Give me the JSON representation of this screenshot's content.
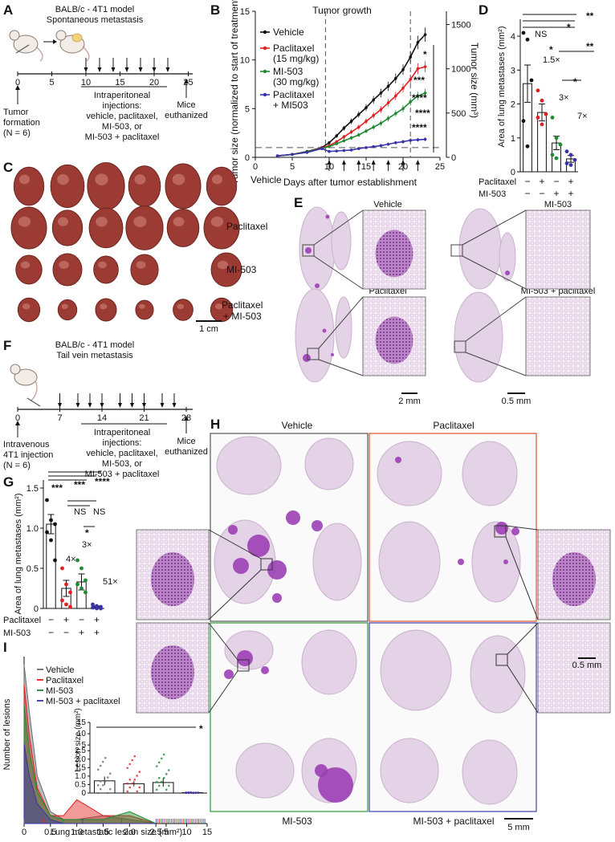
{
  "colors": {
    "vehicle": "#111111",
    "paclitaxel": "#e02020",
    "mi503": "#1f8a32",
    "combo": "#3a33a8",
    "tissue": "#e4d2e6",
    "lesion": "#9b3fb5",
    "tumor": "#9c3b33",
    "frame_h_pac": "#e05030",
    "frame_h_mi": "#2c9a3a",
    "frame_h_combo": "#4040b0"
  },
  "panels": {
    "A": {
      "label": "A",
      "title1": "BALB/c - 4T1 model",
      "title2": "Spontaneous metastasis",
      "ticks": [
        "0",
        "5",
        "10",
        "15",
        "20",
        "25"
      ],
      "formation1": "Tumor",
      "formation2": "formation",
      "formation3": "(N = 6)",
      "inj1": "Intraperitoneal",
      "inj2": "injections:",
      "inj3": "vehicle, paclitaxel,",
      "inj4": "MI-503, or",
      "inj5": "MI-503 + paclitaxel",
      "euth1": "Mice",
      "euth2": "euthanized"
    },
    "B": {
      "label": "B",
      "phase": "Tumor growth",
      "legend": [
        "Vehicle",
        "Paclitaxel",
        "(15 mg/kg)",
        "MI-503",
        "(30 mg/kg)",
        "Paclitaxel",
        "+ MI503"
      ],
      "stars": [
        "*",
        "***",
        "****",
        "****",
        "****"
      ]
    },
    "C": {
      "label": "C",
      "rows": [
        "Vehicle",
        "Paclitaxel",
        "MI-503",
        "Paclitaxel",
        "+ MI-503"
      ],
      "scale": "1 cm"
    },
    "D": {
      "label": "D",
      "axis_paclitaxel": "Paclitaxel",
      "axis_mi503": "MI-503",
      "signs": [
        "−",
        "+",
        "−",
        "+",
        "−",
        "−",
        "+",
        "+"
      ],
      "ns": "NS",
      "folds": [
        "1.5×",
        "3×",
        "7×"
      ],
      "stars": [
        "*",
        "**",
        "*",
        "**",
        "*"
      ]
    },
    "E": {
      "label": "E",
      "titles": [
        "Vehicle",
        "MI-503",
        "Paclitaxel",
        "MI-503 + paclitaxel"
      ],
      "scale_big": "2 mm",
      "scale_small": "0.5 mm"
    },
    "F": {
      "label": "F",
      "title1": "BALB/c - 4T1 model",
      "title2": "Tail vein metastasis",
      "ticks": [
        "0",
        "7",
        "14",
        "21",
        "28"
      ],
      "iv1": "Intravenous",
      "iv2": "4T1 injection",
      "iv3": "(N = 6)",
      "inj1": "Intraperitoneal",
      "inj2": "injections:",
      "inj3": "vehicle, paclitaxel,",
      "inj4": "MI-503, or",
      "inj5": "MI-503 + paclitaxel",
      "euth1": "Mice",
      "euth2": "euthanized"
    },
    "G": {
      "label": "G",
      "axis_paclitaxel": "Paclitaxel",
      "axis_mi503": "MI-503",
      "signs": [
        "−",
        "+",
        "−",
        "+",
        "−",
        "−",
        "+",
        "+"
      ],
      "stars": [
        "***",
        "***",
        "****",
        "*"
      ],
      "ns": [
        "NS",
        "NS"
      ],
      "folds": [
        "4×",
        "3×",
        "51×"
      ]
    },
    "H": {
      "label": "H",
      "titles": [
        "Vehicle",
        "Paclitaxel",
        "MI-503",
        "MI-503 + paclitaxel"
      ],
      "scale_small": "0.5 mm",
      "scale_big": "5 mm"
    },
    "I": {
      "label": "I",
      "legend": [
        "Vehicle",
        "Paclitaxel",
        "MI-503",
        "MI-503 + paclitaxel"
      ],
      "star": "*"
    }
  },
  "chart_data": [
    {
      "type": "line",
      "panel": "B",
      "xlabel": "Days after tumor establishment",
      "ylabel": "Tumor size (normalized to start of treatment)",
      "y2label": "Tumor size (mm³)",
      "xlim": [
        0,
        25
      ],
      "ylim": [
        0,
        15
      ],
      "y2lim": [
        0,
        1650
      ],
      "xticks": [
        "0",
        "5",
        "10",
        "15",
        "20",
        "25"
      ],
      "yticks": [
        "0",
        "5",
        "10",
        "15"
      ],
      "y2ticks": [
        "0",
        "500",
        "1000",
        "1500"
      ],
      "x": [
        3,
        5,
        7,
        9,
        10,
        11,
        12,
        13,
        14,
        15,
        16,
        17,
        18,
        19,
        20,
        21,
        22,
        23
      ],
      "series": [
        {
          "name": "Vehicle",
          "values": [
            0.15,
            0.3,
            0.6,
            1.0,
            1.5,
            2.2,
            3.0,
            3.7,
            4.4,
            5.1,
            5.9,
            6.6,
            7.3,
            8.1,
            9.0,
            10.3,
            11.8,
            12.6
          ]
        },
        {
          "name": "Paclitaxel",
          "values": [
            0.15,
            0.3,
            0.55,
            0.95,
            1.2,
            1.6,
            2.1,
            2.6,
            3.1,
            3.7,
            4.3,
            4.9,
            5.6,
            6.3,
            7.1,
            8.0,
            9.1,
            9.3
          ]
        },
        {
          "name": "MI-503",
          "values": [
            0.15,
            0.3,
            0.55,
            0.9,
            1.1,
            1.4,
            1.7,
            2.0,
            2.3,
            2.7,
            3.1,
            3.5,
            4.0,
            4.5,
            5.0,
            5.7,
            6.3,
            6.6
          ]
        },
        {
          "name": "Paclitaxel + MI503",
          "values": [
            0.15,
            0.3,
            0.5,
            0.9,
            0.6,
            0.65,
            0.7,
            0.75,
            0.9,
            1.0,
            1.1,
            1.2,
            1.35,
            1.5,
            1.6,
            1.75,
            1.8,
            1.85
          ]
        }
      ]
    },
    {
      "type": "bar",
      "panel": "D",
      "ylabel": "Area of lung metastases (mm²)",
      "ylim": [
        0,
        4.5
      ],
      "yticks": [
        "0",
        "1",
        "2",
        "3",
        "4"
      ],
      "categories": [
        "Vehicle",
        "Paclitaxel",
        "MI-503",
        "MI-503 + paclitaxel"
      ],
      "values": [
        2.6,
        1.75,
        0.85,
        0.38
      ],
      "errors": [
        0.55,
        0.25,
        0.2,
        0.1
      ],
      "points": [
        [
          4.1,
          3.9,
          2.7,
          1.5,
          0.75
        ],
        [
          2.4,
          2.1,
          1.7,
          1.6,
          1.4
        ],
        [
          1.6,
          1.0,
          0.8,
          0.5,
          0.4
        ],
        [
          0.6,
          0.5,
          0.35,
          0.25,
          0.2
        ]
      ]
    },
    {
      "type": "bar",
      "panel": "G",
      "ylabel": "Area of lung metastases (mm²)",
      "ylim": [
        0,
        1.6
      ],
      "yticks": [
        "0",
        "0.5",
        "1.0",
        "1.5"
      ],
      "categories": [
        "Vehicle",
        "Paclitaxel",
        "MI-503",
        "MI-503 + paclitaxel"
      ],
      "values": [
        1.05,
        0.25,
        0.33,
        0.02
      ],
      "errors": [
        0.12,
        0.1,
        0.1,
        0.01
      ],
      "points": [
        [
          1.35,
          1.1,
          1.05,
          0.95,
          0.85,
          0.6
        ],
        [
          0.5,
          0.3,
          0.2,
          0.1,
          0.05,
          0.02
        ],
        [
          0.6,
          0.5,
          0.35,
          0.3,
          0.25,
          0.2
        ],
        [
          0.05,
          0.03,
          0.02,
          0.01,
          0.0,
          0.0
        ]
      ]
    },
    {
      "type": "area",
      "panel": "I",
      "xlabel": "Lung metastatic lesion size (mm²)",
      "ylabel": "Number of lesions",
      "xlim": [
        0,
        15
      ],
      "xticks": [
        "0",
        "0.5",
        "1.0",
        "1.5",
        "2.0",
        "2.5",
        "5",
        "10",
        "15"
      ],
      "series": [
        {
          "name": "Vehicle",
          "x": [
            0,
            0.1,
            0.25,
            0.5,
            0.75,
            1.0,
            1.5,
            2.0,
            2.5
          ],
          "values": [
            40,
            28,
            12,
            3,
            1,
            1,
            2,
            1,
            0
          ]
        },
        {
          "name": "Paclitaxel",
          "x": [
            0,
            0.1,
            0.25,
            0.5,
            0.75,
            1.0,
            1.5,
            2.0,
            2.5
          ],
          "values": [
            35,
            22,
            9,
            2,
            2,
            6,
            2,
            2,
            0
          ]
        },
        {
          "name": "MI-503",
          "x": [
            0,
            0.1,
            0.25,
            0.5,
            0.75,
            1.0,
            1.5,
            2.0,
            2.5
          ],
          "values": [
            30,
            18,
            8,
            2,
            1,
            1,
            1,
            3,
            0
          ]
        },
        {
          "name": "MI-503 + paclitaxel",
          "x": [
            0,
            0.1,
            0.25,
            0.5,
            0.75,
            1.0,
            1.5,
            2.0,
            2.5
          ],
          "values": [
            20,
            12,
            5,
            1,
            0,
            0,
            0,
            0,
            0
          ]
        }
      ]
    },
    {
      "type": "bar",
      "panel": "I-inset",
      "ylabel": "Lesion size (mm²)",
      "ylim": [
        0,
        15
      ],
      "yticks": [
        "0",
        "0.5",
        "1.0",
        "1.5",
        "2.0",
        "2.5",
        "5",
        "10",
        "15"
      ],
      "categories": [
        "Vehicle",
        "Paclitaxel",
        "MI-503",
        "MI-503 + paclitaxel"
      ],
      "values": [
        0.72,
        0.55,
        0.62,
        0.02
      ],
      "errors": [
        0.25,
        0.15,
        0.25,
        0.01
      ]
    }
  ]
}
